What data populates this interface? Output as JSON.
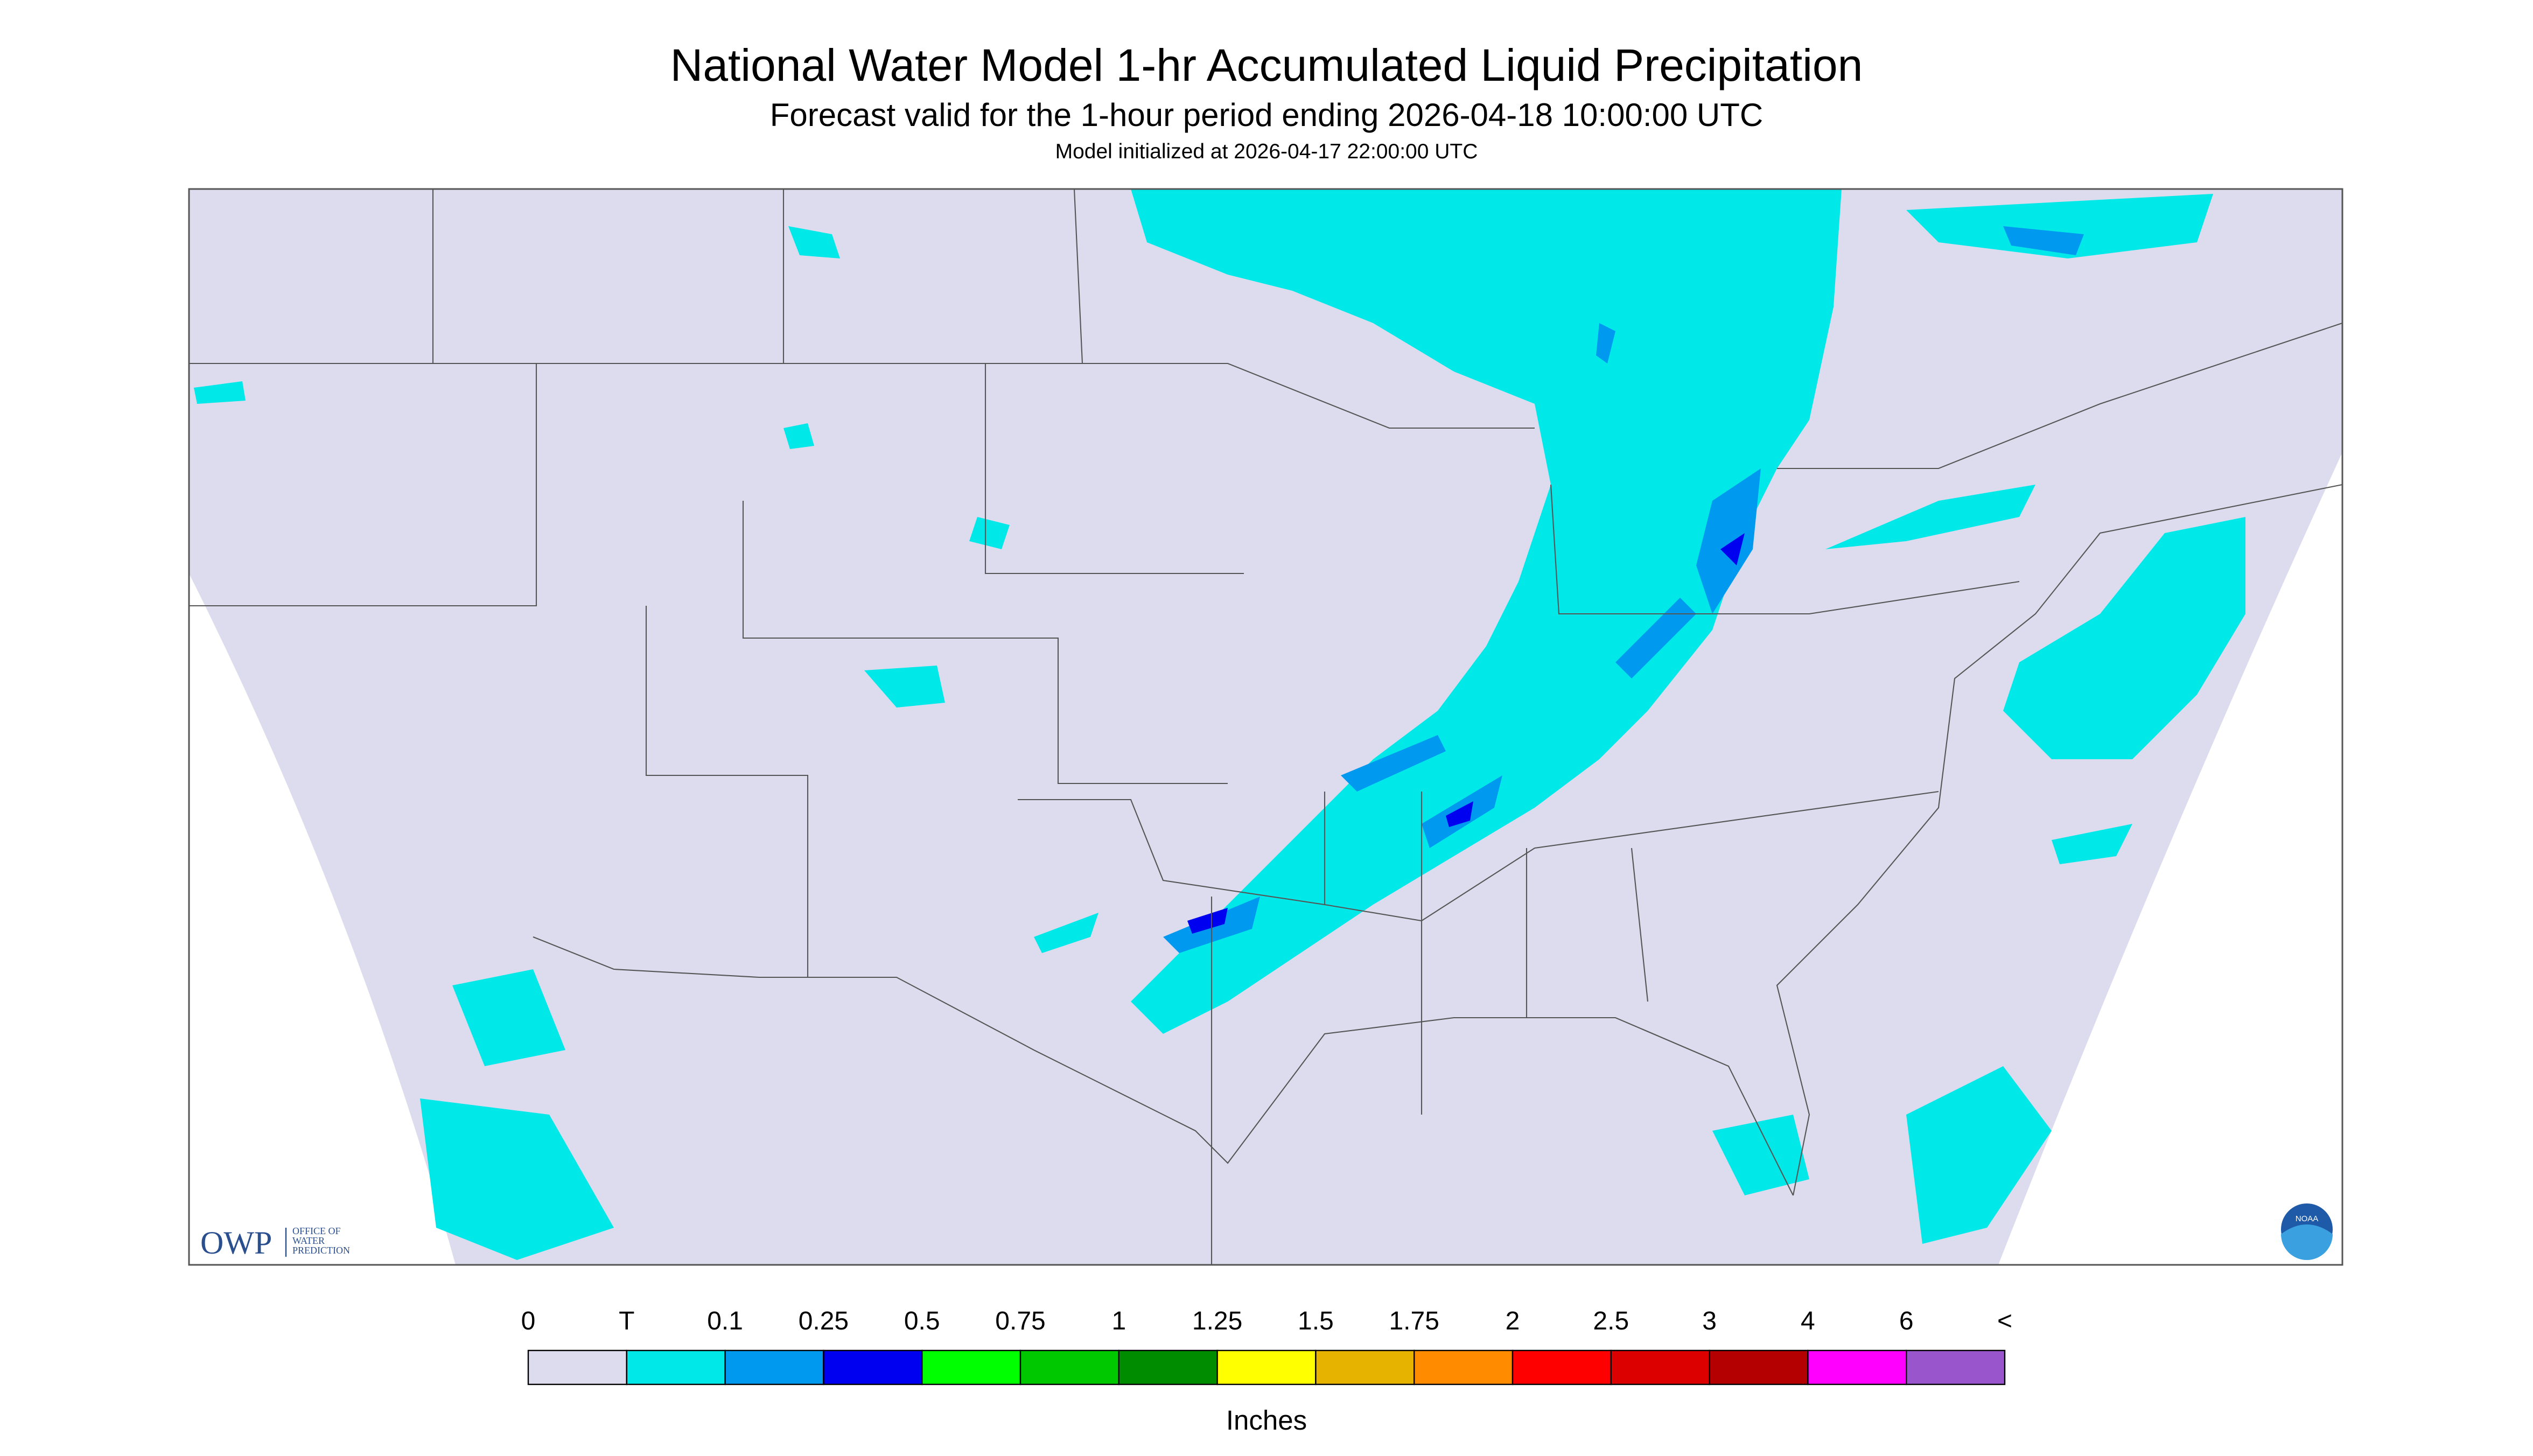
{
  "header": {
    "title": "National Water Model 1-hr Accumulated Liquid Precipitation",
    "subtitle": "Forecast valid for the 1-hour period ending 2026-04-18 10:00:00 UTC",
    "initialized": "Model initialized at 2026-04-17 22:00:00 UTC"
  },
  "legend": {
    "labels": [
      "0",
      "T",
      "0.1",
      "0.25",
      "0.5",
      "0.75",
      "1",
      "1.25",
      "1.5",
      "1.75",
      "2",
      "2.5",
      "3",
      "4",
      "6",
      "<"
    ],
    "colors": [
      "#dcdcee",
      "#00e8e8",
      "#0099f0",
      "#0000f0",
      "#00ff00",
      "#00c800",
      "#008c00",
      "#ffff00",
      "#e6b400",
      "#ff8c00",
      "#ff0000",
      "#dc0000",
      "#b40000",
      "#ff00ff",
      "#9955cc"
    ],
    "unit": "Inches"
  },
  "logo": {
    "owp": "OWP",
    "lines": [
      "OFFICE OF",
      "WATER",
      "PREDICTION"
    ],
    "noaa": "NOAA"
  }
}
